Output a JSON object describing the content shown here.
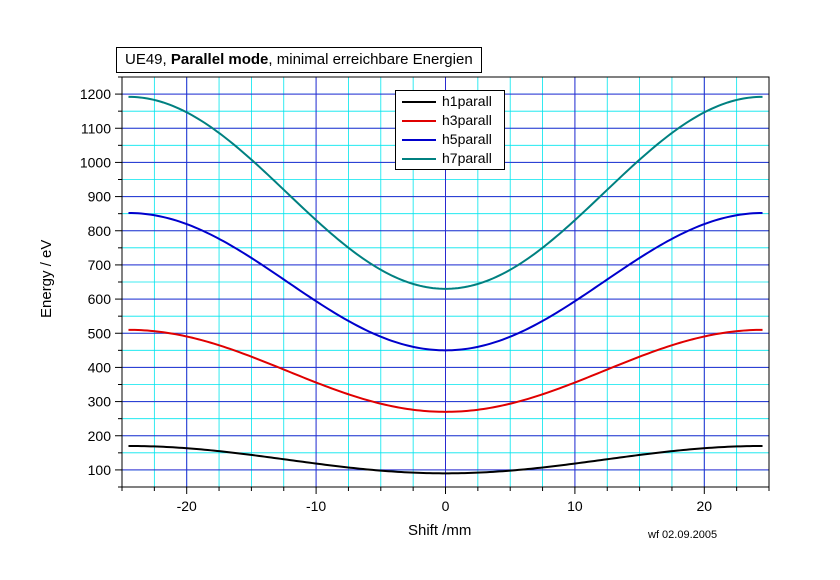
{
  "chart_data": {
    "type": "line",
    "title_prefix": "UE49, ",
    "title_bold": "Parallel mode",
    "title_suffix": ", minimal erreichbare Energien",
    "xlabel": "Shift /mm",
    "ylabel": "Energy / eV",
    "xlim": [
      -25,
      25
    ],
    "ylim": [
      50,
      1250
    ],
    "x_major_ticks": [
      -20,
      -10,
      0,
      10,
      20
    ],
    "y_major_ticks": [
      100,
      200,
      300,
      400,
      500,
      600,
      700,
      800,
      900,
      1000,
      1100,
      1200
    ],
    "grid": true,
    "legend_position": "top-center",
    "series": [
      {
        "name": "h1parall",
        "color": "#000000",
        "amplitude": 80,
        "offset": 90
      },
      {
        "name": "h3parall",
        "color": "#e00000",
        "amplitude": 240,
        "offset": 270
      },
      {
        "name": "h5parall",
        "color": "#0000cc",
        "amplitude": 402,
        "offset": 450
      },
      {
        "name": "h7parall",
        "color": "#008080",
        "amplitude": 562,
        "offset": 630
      }
    ],
    "curve_formula": "E(x) = offset + amplitude * sin^2(pi * x / 49)",
    "x_range": [
      -24.5,
      24.5
    ]
  },
  "footnote": "wf 02.09.2005"
}
